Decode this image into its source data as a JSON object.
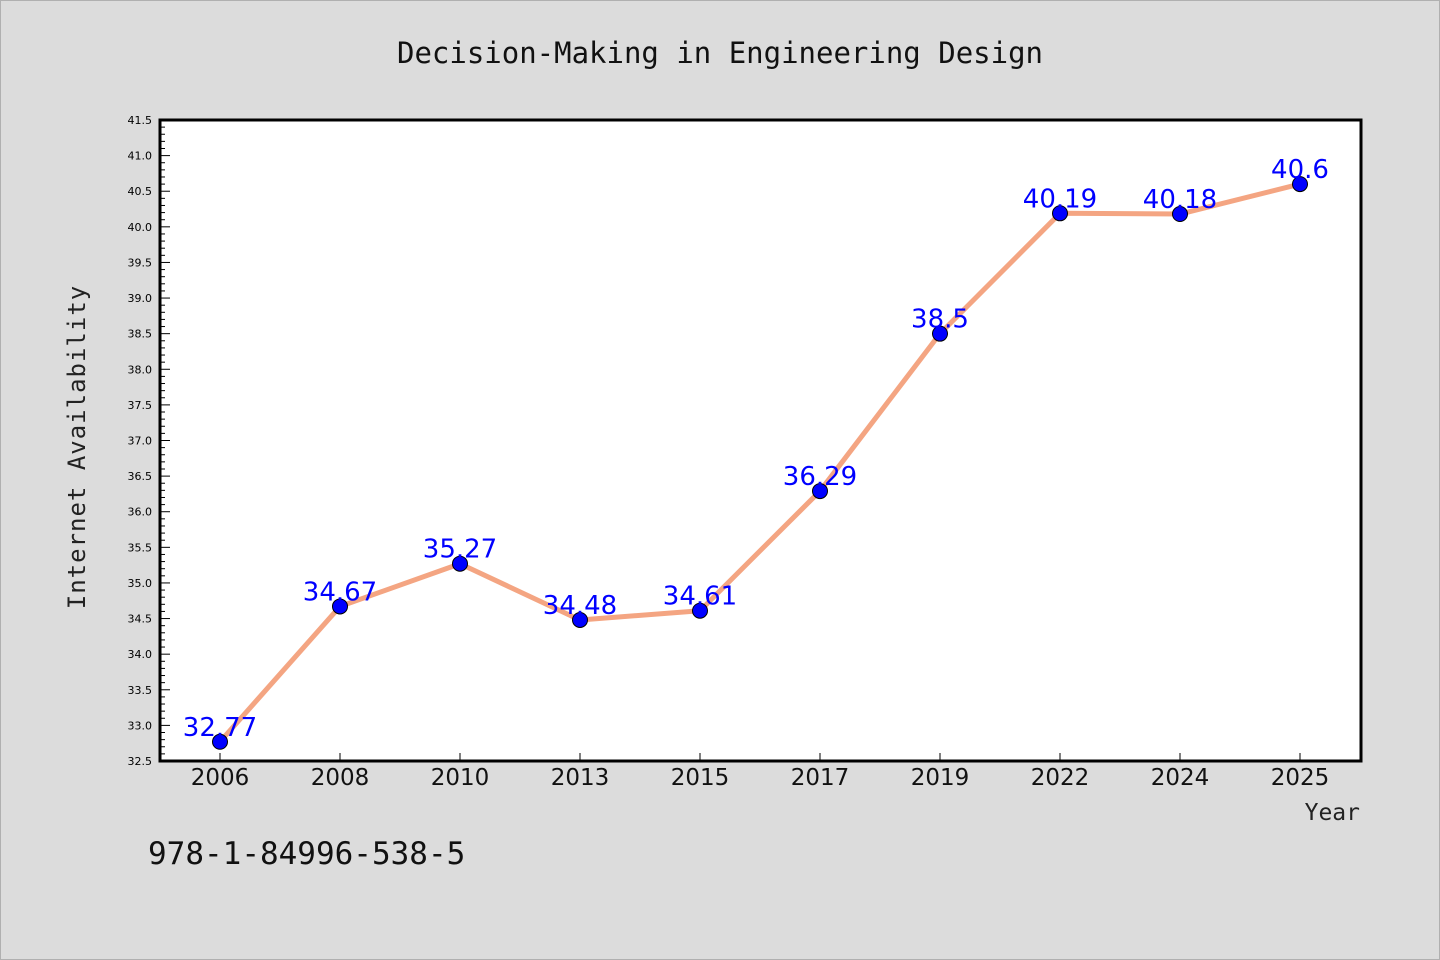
{
  "chart_data": {
    "type": "line",
    "title": "Decision-Making in Engineering Design",
    "xlabel": "Year",
    "ylabel": "Internet Availability",
    "categories": [
      "2006",
      "2008",
      "2010",
      "2013",
      "2015",
      "2017",
      "2019",
      "2022",
      "2024",
      "2025"
    ],
    "series": [
      {
        "values": [
          32.77,
          34.67,
          35.27,
          34.48,
          34.61,
          36.29,
          38.5,
          40.19,
          40.18,
          40.6
        ],
        "labels": [
          "32.77",
          "34.67",
          "35.27",
          "34.48",
          "34.61",
          "36.29",
          "38.5",
          "40.19",
          "40.18",
          "40.6"
        ]
      }
    ],
    "ylim": [
      32.5,
      41.5
    ],
    "yticks": [
      "32.5",
      "33.0",
      "33.5",
      "34.0",
      "34.5",
      "35.0",
      "35.5",
      "36.0",
      "36.5",
      "37.0",
      "37.5",
      "38.0",
      "38.5",
      "39.0",
      "39.5",
      "40.0",
      "40.5",
      "41.0",
      "41.5"
    ],
    "grid": false,
    "colors": {
      "line": "#f4a582",
      "marker": "#0000ff",
      "label": "#0000ff",
      "background": "#dcdcdc",
      "plot_background": "#ffffff"
    }
  },
  "footer_text": "978-1-84996-538-5"
}
